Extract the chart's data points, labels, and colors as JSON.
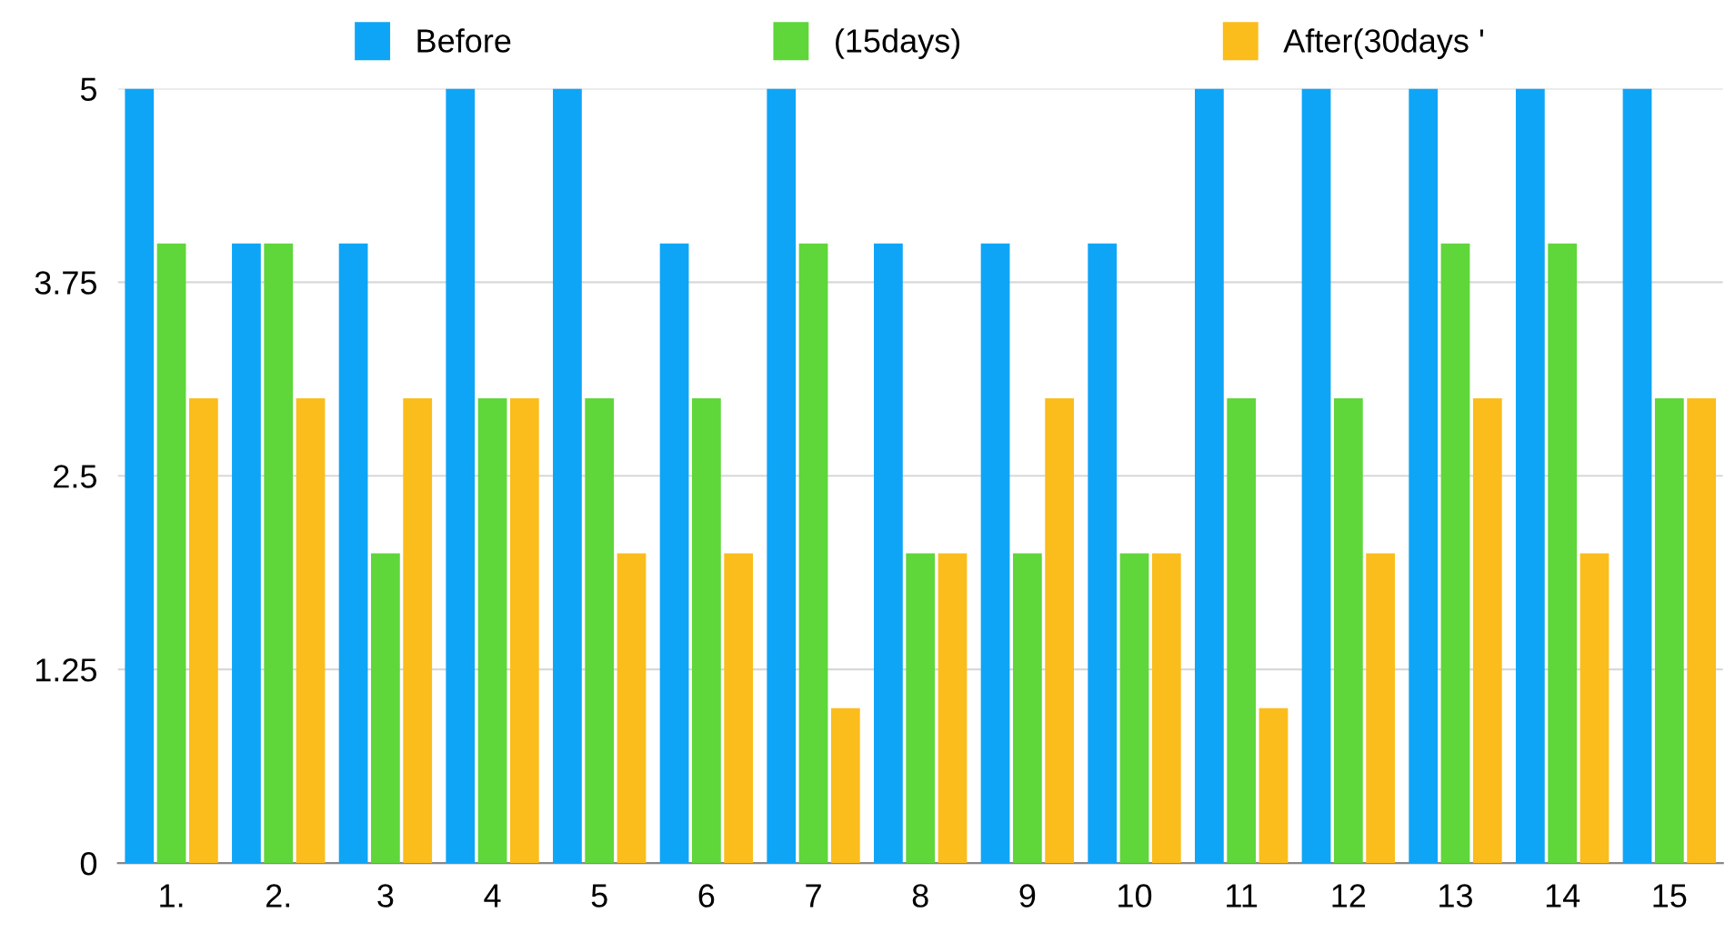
{
  "chart_data": {
    "type": "bar",
    "categories": [
      "1.",
      "2.",
      "3",
      "4",
      "5",
      "6",
      "7",
      "8",
      "9",
      "10",
      "11",
      "12",
      "13",
      "14",
      "15"
    ],
    "series": [
      {
        "name": "Before",
        "color": "#0ea5f7",
        "values": [
          5,
          4,
          4,
          5,
          5,
          4,
          5,
          4,
          4,
          4,
          5,
          5,
          5,
          5,
          5
        ]
      },
      {
        "name": "(15days)",
        "color": "#5fd63a",
        "values": [
          4,
          4,
          2,
          3,
          3,
          3,
          4,
          2,
          2,
          2,
          3,
          3,
          4,
          4,
          3
        ]
      },
      {
        "name": "After(30days '",
        "color": "#fbbd1c",
        "values": [
          3,
          3,
          3,
          3,
          2,
          2,
          1,
          2,
          3,
          2,
          1,
          2,
          3,
          2,
          3
        ]
      }
    ],
    "ylim": [
      0,
      5
    ],
    "yticks": [
      0,
      1.25,
      2.5,
      3.75,
      5
    ],
    "grid": "y",
    "legend": "top"
  }
}
